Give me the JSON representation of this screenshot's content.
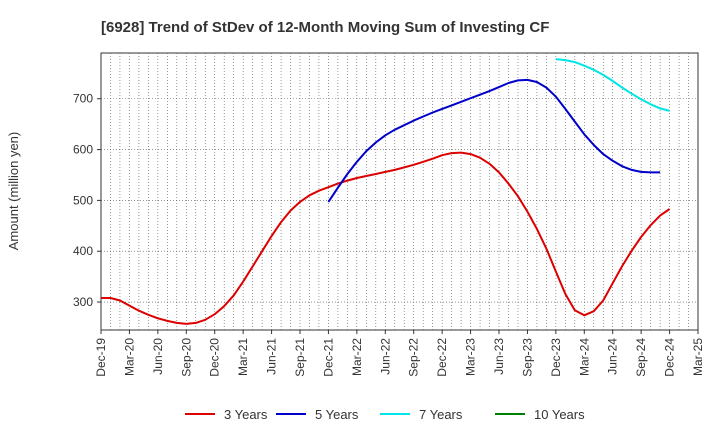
{
  "chart_data": {
    "type": "line",
    "title": "[6928]  Trend of StDev of 12-Month Moving Sum of Investing CF",
    "ylabel": "Amount (million yen)",
    "xlabel": "",
    "ylim": [
      245,
      790
    ],
    "yticks": [
      300,
      400,
      500,
      600,
      700
    ],
    "x_ticks": [
      "Dec-19",
      "Mar-20",
      "Jun-20",
      "Sep-20",
      "Dec-20",
      "Mar-21",
      "Jun-21",
      "Sep-21",
      "Dec-21",
      "Mar-22",
      "Jun-22",
      "Sep-22",
      "Dec-22",
      "Mar-23",
      "Jun-23",
      "Sep-23",
      "Dec-23",
      "Mar-24",
      "Jun-24",
      "Sep-24",
      "Dec-24",
      "Mar-25"
    ],
    "grid": true,
    "legend_position": "bottom",
    "series": [
      {
        "name": "3 Years",
        "color": "#dd0000",
        "start_index": 0,
        "values": [
          308,
          308,
          303,
          293,
          283,
          275,
          268,
          263,
          259,
          257,
          259,
          265,
          276,
          292,
          313,
          340,
          370,
          400,
          430,
          457,
          480,
          497,
          510,
          519,
          526,
          533,
          539,
          544,
          548,
          552,
          556,
          560,
          565,
          570,
          576,
          582,
          589,
          593,
          594,
          591,
          584,
          572,
          555,
          533,
          508,
          478,
          444,
          405,
          360,
          316,
          284,
          274,
          282,
          303,
          337,
          371,
          401,
          428,
          451,
          470,
          483
        ]
      },
      {
        "name": "5 Years",
        "color": "#0000cc",
        "start_index": 24,
        "values": [
          497,
          525,
          552,
          576,
          597,
          614,
          628,
          639,
          648,
          657,
          665,
          673,
          680,
          687,
          694,
          701,
          708,
          715,
          723,
          731,
          736,
          737,
          733,
          722,
          704,
          680,
          655,
          630,
          609,
          591,
          578,
          567,
          560,
          556,
          555,
          555
        ]
      },
      {
        "name": "7 Years",
        "color": "#00e5e5",
        "start_index": 48,
        "values": [
          778,
          776,
          772,
          765,
          757,
          747,
          735,
          722,
          710,
          699,
          689,
          681,
          676
        ]
      },
      {
        "name": "10 Years",
        "color": "#008000",
        "start_index": 0,
        "values": []
      }
    ]
  }
}
